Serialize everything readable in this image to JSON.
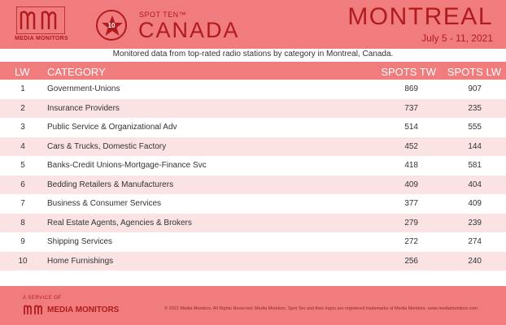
{
  "brand": {
    "logo_text": "MEDIA MONITORS",
    "colors": {
      "accent": "#f07c7d",
      "dark": "#b01c1e",
      "row_alt": "#fbe3e3"
    }
  },
  "header": {
    "badge_number": "10",
    "spot_ten": "SPOT TEN™",
    "country": "CANADA",
    "city": "MONTREAL",
    "dates": "July 5 - 11, 2021"
  },
  "subtitle": "Monitored data from top-rated radio stations by category in Montreal, Canada.",
  "table": {
    "columns": {
      "lw": "LW",
      "category": "CATEGORY",
      "spots_tw": "SPOTS TW",
      "spots_lw": "SPOTS LW"
    },
    "rows": [
      {
        "lw": "1",
        "category": "Government-Unions",
        "tw": "869",
        "lw_spots": "907"
      },
      {
        "lw": "2",
        "category": "Insurance Providers",
        "tw": "737",
        "lw_spots": "235"
      },
      {
        "lw": "3",
        "category": "Public Service & Organizational Adv",
        "tw": "514",
        "lw_spots": "555"
      },
      {
        "lw": "4",
        "category": "Cars & Trucks, Domestic Factory",
        "tw": "452",
        "lw_spots": "144"
      },
      {
        "lw": "5",
        "category": "Banks-Credit Unions-Mortgage-Finance Svc",
        "tw": "418",
        "lw_spots": "581"
      },
      {
        "lw": "6",
        "category": "Bedding Retailers & Manufacturers",
        "tw": "409",
        "lw_spots": "404"
      },
      {
        "lw": "7",
        "category": "Business & Consumer Services",
        "tw": "377",
        "lw_spots": "409"
      },
      {
        "lw": "8",
        "category": "Real Estate Agents, Agencies & Brokers",
        "tw": "279",
        "lw_spots": "239"
      },
      {
        "lw": "9",
        "category": "Shipping Services",
        "tw": "272",
        "lw_spots": "274"
      },
      {
        "lw": "10",
        "category": "Home Furnishings",
        "tw": "256",
        "lw_spots": "240"
      }
    ]
  },
  "footer": {
    "service_of": "A SERVICE OF",
    "logo_text": "MEDIA MONITORS",
    "copyright": "© 2021 Media Monitors. All Rights Reserved. Media Monitors, Spot Ten and their logos are registered trademarks of Media Monitors. www.mediamonitors.com"
  }
}
